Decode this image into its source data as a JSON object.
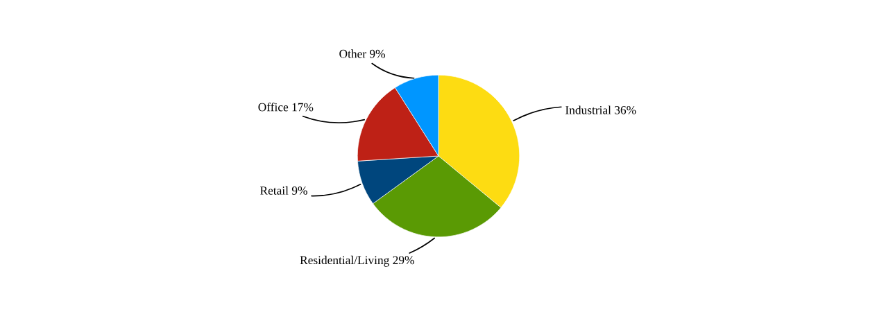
{
  "chart_data": {
    "type": "pie",
    "categories": [
      "Industrial",
      "Residential/Living",
      "Retail",
      "Office",
      "Other"
    ],
    "values": [
      36,
      29,
      9,
      17,
      9
    ],
    "value_labels": [
      "36%",
      "29%",
      "9%",
      "17%",
      "9%"
    ],
    "colors": [
      "#fddc12",
      "#5a9a04",
      "#00467d",
      "#be2116",
      "#0096ff"
    ]
  }
}
